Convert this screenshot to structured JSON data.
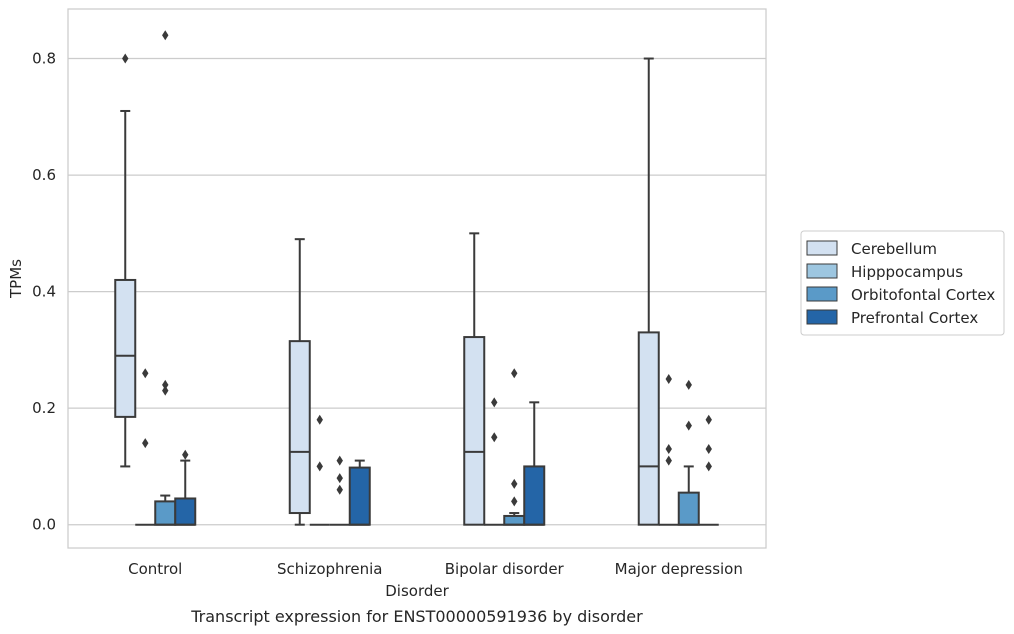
{
  "chart_data": {
    "type": "boxplot",
    "title": "",
    "caption": "Transcript expression for ENST00000591936 by disorder",
    "xlabel": "Disorder",
    "ylabel": "TPMs",
    "ylim": [
      -0.04,
      0.885
    ],
    "yticks": [
      0.0,
      0.2,
      0.4,
      0.6,
      0.8
    ],
    "ytick_labels": [
      "0.0",
      "0.2",
      "0.4",
      "0.6",
      "0.8"
    ],
    "grid": "horizontal",
    "legend_position": "right",
    "categories": [
      "Control",
      "Schizophrenia",
      "Bipolar disorder",
      "Major depression"
    ],
    "series": [
      {
        "name": "Cerebellum",
        "color": "#d3e1f1",
        "boxes": [
          {
            "q1": 0.185,
            "median": 0.29,
            "q3": 0.42,
            "whislo": 0.1,
            "whishi": 0.71,
            "fliers": [
              0.8
            ]
          },
          {
            "q1": 0.02,
            "median": 0.125,
            "q3": 0.315,
            "whislo": 0.0,
            "whishi": 0.49,
            "fliers": []
          },
          {
            "q1": 0.0,
            "median": 0.125,
            "q3": 0.322,
            "whislo": 0.0,
            "whishi": 0.5,
            "fliers": []
          },
          {
            "q1": 0.0,
            "median": 0.1,
            "q3": 0.33,
            "whislo": 0.0,
            "whishi": 0.8,
            "fliers": []
          }
        ]
      },
      {
        "name": "Hipppocampus",
        "color": "#9dc6e0",
        "boxes": [
          {
            "q1": 0.0,
            "median": 0.0,
            "q3": 0.0,
            "whislo": 0.0,
            "whishi": 0.0,
            "fliers": [
              0.26,
              0.14
            ]
          },
          {
            "q1": 0.0,
            "median": 0.0,
            "q3": 0.0,
            "whislo": 0.0,
            "whishi": 0.0,
            "fliers": [
              0.18,
              0.1
            ]
          },
          {
            "q1": 0.0,
            "median": 0.0,
            "q3": 0.0,
            "whislo": 0.0,
            "whishi": 0.0,
            "fliers": [
              0.21,
              0.15
            ]
          },
          {
            "q1": 0.0,
            "median": 0.0,
            "q3": 0.0,
            "whislo": 0.0,
            "whishi": 0.0,
            "fliers": [
              0.25,
              0.13,
              0.11
            ]
          }
        ]
      },
      {
        "name": "Orbitofontal Cortex",
        "color": "#5a9ac8",
        "boxes": [
          {
            "q1": 0.0,
            "median": 0.0,
            "q3": 0.04,
            "whislo": 0.0,
            "whishi": 0.05,
            "fliers": [
              0.84,
              0.24,
              0.23
            ]
          },
          {
            "q1": 0.0,
            "median": 0.0,
            "q3": 0.0,
            "whislo": 0.0,
            "whishi": 0.0,
            "fliers": [
              0.11,
              0.08,
              0.06
            ]
          },
          {
            "q1": 0.0,
            "median": 0.0,
            "q3": 0.015,
            "whislo": 0.0,
            "whishi": 0.02,
            "fliers": [
              0.26,
              0.07,
              0.04
            ]
          },
          {
            "q1": 0.0,
            "median": 0.0,
            "q3": 0.055,
            "whislo": 0.0,
            "whishi": 0.1,
            "fliers": [
              0.24,
              0.17
            ]
          }
        ]
      },
      {
        "name": "Prefrontal Cortex",
        "color": "#2465a7",
        "boxes": [
          {
            "q1": 0.0,
            "median": 0.0,
            "q3": 0.045,
            "whislo": 0.0,
            "whishi": 0.11,
            "fliers": [
              0.12
            ]
          },
          {
            "q1": 0.0,
            "median": 0.0,
            "q3": 0.098,
            "whislo": 0.0,
            "whishi": 0.11,
            "fliers": []
          },
          {
            "q1": 0.0,
            "median": 0.0,
            "q3": 0.1,
            "whislo": 0.0,
            "whishi": 0.21,
            "fliers": []
          },
          {
            "q1": 0.0,
            "median": 0.0,
            "q3": 0.0,
            "whislo": 0.0,
            "whishi": 0.0,
            "fliers": [
              0.18,
              0.13,
              0.1
            ]
          }
        ]
      }
    ]
  }
}
